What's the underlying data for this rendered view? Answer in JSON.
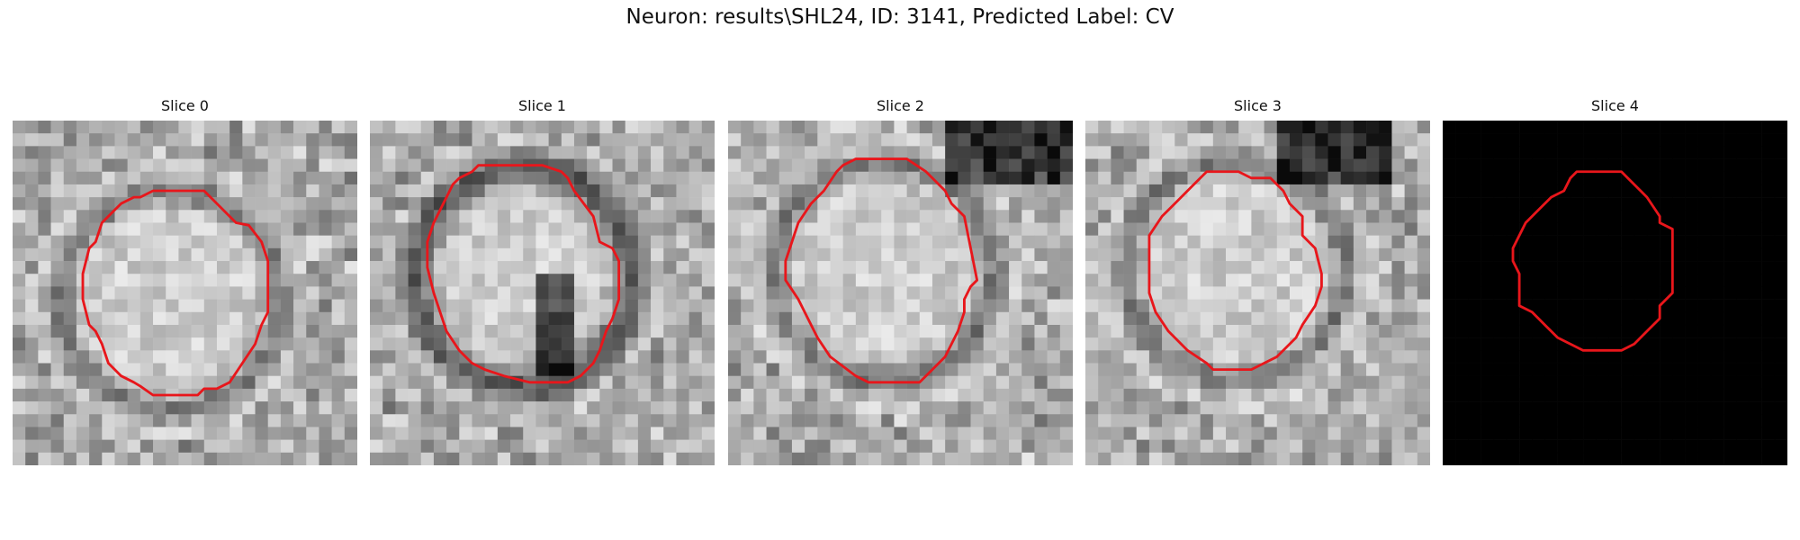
{
  "figure": {
    "title": "Neuron: results\\SHL24, ID: 3141, Predicted Label: CV"
  },
  "panels": [
    {
      "title": "Slice 0",
      "seed": 11,
      "tone": "light-ring",
      "outline_color": "#e8161b",
      "contour": [
        [
          11,
          5.5
        ],
        [
          15,
          5.5
        ],
        [
          17.5,
          8
        ],
        [
          18.5,
          8.2
        ],
        [
          19.5,
          9.5
        ],
        [
          20,
          11
        ],
        [
          20,
          13
        ],
        [
          20,
          15
        ],
        [
          19.5,
          16
        ],
        [
          19,
          17.5
        ],
        [
          18,
          19
        ],
        [
          17,
          20.5
        ],
        [
          16,
          21
        ],
        [
          15,
          21
        ],
        [
          14.5,
          21.5
        ],
        [
          13,
          21.5
        ],
        [
          11,
          21.5
        ],
        [
          10,
          20.8
        ],
        [
          9.5,
          20.5
        ],
        [
          8.5,
          20
        ],
        [
          7.5,
          19
        ],
        [
          7,
          17.5
        ],
        [
          6.5,
          16.5
        ],
        [
          6,
          16
        ],
        [
          5.5,
          14
        ],
        [
          5.5,
          12
        ],
        [
          6,
          10
        ],
        [
          6.5,
          9.5
        ],
        [
          7,
          8
        ],
        [
          8,
          7
        ],
        [
          8.5,
          6.5
        ],
        [
          9.5,
          6
        ],
        [
          10,
          6
        ]
      ]
    },
    {
      "title": "Slice 1",
      "seed": 23,
      "tone": "dark-ring",
      "outline_color": "#e8161b",
      "contour": [
        [
          8.5,
          3.5
        ],
        [
          13.5,
          3.5
        ],
        [
          15,
          4
        ],
        [
          15.5,
          4.5
        ],
        [
          16,
          5.5
        ],
        [
          17.5,
          7.5
        ],
        [
          18,
          9.5
        ],
        [
          19,
          10
        ],
        [
          19.5,
          11
        ],
        [
          19.5,
          14
        ],
        [
          19,
          15.5
        ],
        [
          18.5,
          16.5
        ],
        [
          18,
          18
        ],
        [
          17.5,
          19
        ],
        [
          16.5,
          20
        ],
        [
          15.5,
          20.5
        ],
        [
          14,
          20.5
        ],
        [
          12.5,
          20.5
        ],
        [
          10.5,
          20
        ],
        [
          9,
          19.5
        ],
        [
          8,
          19
        ],
        [
          7,
          18
        ],
        [
          6,
          16.5
        ],
        [
          5.5,
          15
        ],
        [
          5,
          13.5
        ],
        [
          4.5,
          11.5
        ],
        [
          4.5,
          9.5
        ],
        [
          5,
          8
        ],
        [
          6,
          6
        ],
        [
          6.5,
          5
        ],
        [
          7,
          4.5
        ],
        [
          8,
          4
        ]
      ]
    },
    {
      "title": "Slice 2",
      "seed": 37,
      "tone": "light-ring",
      "outline_color": "#e8161b",
      "contour": [
        [
          10,
          3
        ],
        [
          14,
          3
        ],
        [
          15.5,
          4
        ],
        [
          17,
          5.5
        ],
        [
          17.5,
          6.5
        ],
        [
          18.5,
          7.5
        ],
        [
          19,
          10
        ],
        [
          19.5,
          12.5
        ],
        [
          19,
          13
        ],
        [
          18.5,
          14
        ],
        [
          18.5,
          15
        ],
        [
          18,
          16.5
        ],
        [
          17,
          18.5
        ],
        [
          16,
          19.5
        ],
        [
          15,
          20.5
        ],
        [
          14,
          20.5
        ],
        [
          11,
          20.5
        ],
        [
          10,
          20
        ],
        [
          8,
          18.5
        ],
        [
          7,
          17
        ],
        [
          6.5,
          16
        ],
        [
          5.5,
          14
        ],
        [
          4.5,
          12.5
        ],
        [
          4.5,
          11
        ],
        [
          5,
          9.5
        ],
        [
          5.5,
          8
        ],
        [
          6.5,
          6.5
        ],
        [
          7.5,
          5.5
        ],
        [
          8.5,
          4
        ],
        [
          9,
          3.5
        ]
      ]
    },
    {
      "title": "Slice 3",
      "seed": 53,
      "tone": "light-ring",
      "outline_color": "#e8161b",
      "contour": [
        [
          9.5,
          4
        ],
        [
          12,
          4
        ],
        [
          13,
          4.5
        ],
        [
          14.5,
          4.5
        ],
        [
          15.5,
          5.5
        ],
        [
          16,
          6.5
        ],
        [
          17,
          7.5
        ],
        [
          17,
          9
        ],
        [
          18,
          10
        ],
        [
          18.5,
          12
        ],
        [
          18.5,
          13
        ],
        [
          18,
          14.5
        ],
        [
          17,
          16
        ],
        [
          16.5,
          17
        ],
        [
          15,
          18.5
        ],
        [
          14,
          19
        ],
        [
          13,
          19.5
        ],
        [
          11.5,
          19.5
        ],
        [
          10,
          19.5
        ],
        [
          9.5,
          19
        ],
        [
          8,
          18
        ],
        [
          6.5,
          16.5
        ],
        [
          5.5,
          15
        ],
        [
          5,
          13.5
        ],
        [
          5,
          12
        ],
        [
          5,
          10.5
        ],
        [
          5,
          9
        ],
        [
          6,
          7.5
        ],
        [
          7,
          6.5
        ],
        [
          8,
          5.5
        ],
        [
          8.5,
          5
        ]
      ]
    },
    {
      "title": "Slice 4",
      "seed": 0,
      "tone": "black",
      "outline_color": "#e8161b",
      "contour": [
        [
          10.5,
          4
        ],
        [
          14,
          4
        ],
        [
          14.5,
          4.5
        ],
        [
          15.5,
          5.5
        ],
        [
          16,
          6
        ],
        [
          17,
          7.5
        ],
        [
          17,
          8
        ],
        [
          18,
          8.5
        ],
        [
          18,
          10
        ],
        [
          18,
          12
        ],
        [
          18,
          13.5
        ],
        [
          17,
          14.5
        ],
        [
          17,
          15.5
        ],
        [
          16,
          16.5
        ],
        [
          15,
          17.5
        ],
        [
          14,
          18
        ],
        [
          13,
          18
        ],
        [
          11,
          18
        ],
        [
          10,
          17.5
        ],
        [
          9,
          17
        ],
        [
          8,
          16
        ],
        [
          7,
          15
        ],
        [
          6,
          14.5
        ],
        [
          6,
          12
        ],
        [
          5.5,
          11
        ],
        [
          5.5,
          10
        ],
        [
          6,
          9
        ],
        [
          6.5,
          8
        ],
        [
          7.5,
          7
        ],
        [
          8.5,
          6
        ],
        [
          9.5,
          5.5
        ],
        [
          10,
          4.5
        ]
      ]
    }
  ]
}
